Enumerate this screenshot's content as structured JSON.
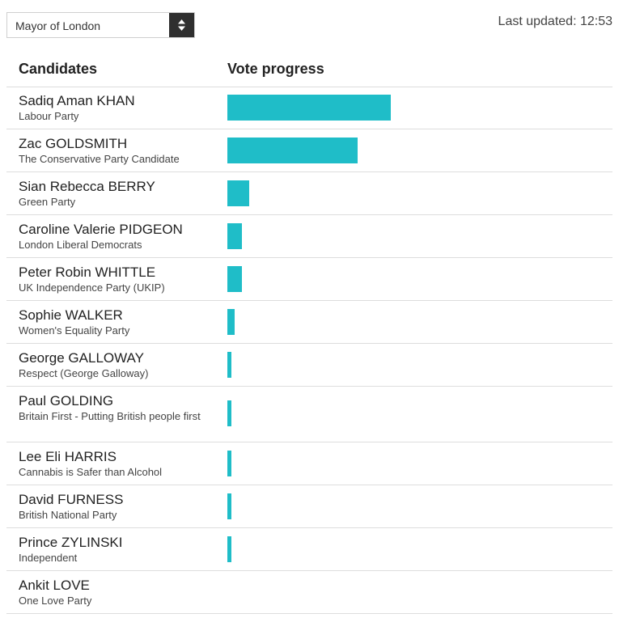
{
  "election_select": {
    "value": "Mayor of London"
  },
  "last_updated": "Last updated: 12:53",
  "table": {
    "header": {
      "candidates": "Candidates",
      "vote_progress": "Vote progress"
    },
    "bar_color": "#1fbdc8",
    "rows": [
      {
        "name": "Sadiq Aman KHAN",
        "party": "Labour Party",
        "progress": 0.456
      },
      {
        "name": "Zac GOLDSMITH",
        "party": "The Conservative Party Candidate",
        "progress": 0.362
      },
      {
        "name": "Sian Rebecca BERRY",
        "party": "Green Party",
        "progress": 0.061
      },
      {
        "name": "Caroline Valerie PIDGEON",
        "party": "London Liberal Democrats",
        "progress": 0.041
      },
      {
        "name": "Peter Robin WHITTLE",
        "party": "UK Independence Party (UKIP)",
        "progress": 0.041
      },
      {
        "name": "Sophie WALKER",
        "party": "Women's Equality Party",
        "progress": 0.02
      },
      {
        "name": "George GALLOWAY",
        "party": "Respect (George Galloway)",
        "progress": 0.011
      },
      {
        "name": "Paul GOLDING",
        "party": "Britain First - Putting British people first",
        "progress": 0.011
      },
      {
        "name": "Lee Eli HARRIS",
        "party": "Cannabis is Safer than Alcohol",
        "progress": 0.011
      },
      {
        "name": "David FURNESS",
        "party": "British National Party",
        "progress": 0.011
      },
      {
        "name": "Prince ZYLINSKI",
        "party": "Independent",
        "progress": 0.011
      },
      {
        "name": "Ankit LOVE",
        "party": "One Love Party",
        "progress": 0.0
      }
    ]
  }
}
